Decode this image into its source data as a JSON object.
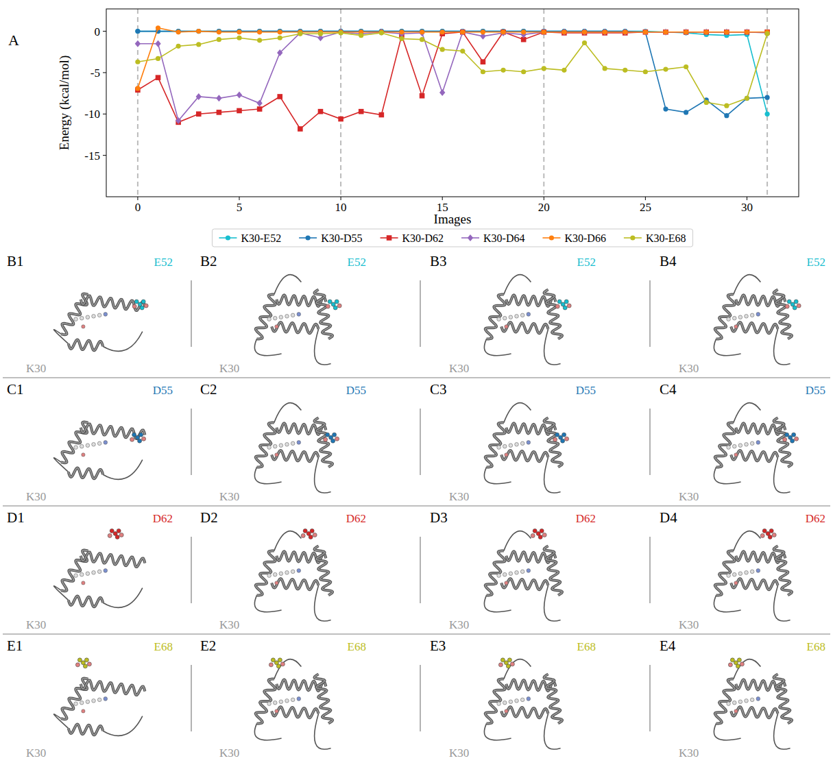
{
  "chart_data": {
    "type": "line",
    "panel_label": "A",
    "x_label": "Images",
    "y_label": "Energy (kcal/mol)",
    "x": [
      0,
      1,
      2,
      3,
      4,
      5,
      6,
      7,
      8,
      9,
      10,
      11,
      12,
      13,
      14,
      15,
      16,
      17,
      18,
      19,
      20,
      21,
      22,
      23,
      24,
      25,
      26,
      27,
      28,
      29,
      30,
      31
    ],
    "xlim": [
      -1.55,
      32.55
    ],
    "xticks": [
      0,
      5,
      10,
      15,
      20,
      25,
      30
    ],
    "ylim": [
      -20,
      2.7
    ],
    "yticks": [
      -15,
      -10,
      -5,
      0
    ],
    "vlines": [
      0,
      10,
      20,
      31
    ],
    "grid": false,
    "legend": "below",
    "series": [
      {
        "name": "K30-E52",
        "color": "#17becf",
        "marker": "circle",
        "line_style": "solid",
        "values": [
          0,
          0,
          0,
          0,
          0,
          0,
          0,
          0,
          0,
          0,
          0,
          0,
          0,
          0,
          0,
          0,
          0,
          0,
          0,
          0,
          0,
          0,
          0,
          0,
          0,
          0,
          -0.1,
          -0.2,
          -0.4,
          -0.5,
          -0.4,
          -10.0
        ]
      },
      {
        "name": "K30-D55",
        "color": "#1f77b4",
        "marker": "circle",
        "line_style": "solid",
        "values": [
          0,
          0,
          0,
          0,
          0,
          0,
          0,
          0,
          0,
          0,
          0,
          0,
          0,
          0,
          0,
          0,
          0,
          0,
          0,
          0,
          0,
          0,
          0,
          0,
          0,
          -0.1,
          -9.4,
          -9.8,
          -8.3,
          -10.2,
          -8.1,
          -8.0
        ]
      },
      {
        "name": "K30-D62",
        "color": "#d62728",
        "marker": "square",
        "line_style": "solid",
        "values": [
          -7.1,
          -5.6,
          -11.0,
          -10.0,
          -9.8,
          -9.6,
          -9.4,
          -7.9,
          -11.8,
          -9.7,
          -10.6,
          -9.7,
          -10.1,
          -0.5,
          -7.8,
          -0.3,
          -0.1,
          -3.7,
          -0.1,
          -1.0,
          -0.1,
          -0.2,
          -0.2,
          -0.2,
          -0.2,
          -0.1,
          -0.1,
          -0.1,
          -0.1,
          -0.1,
          -0.1,
          -0.1
        ]
      },
      {
        "name": "K30-D64",
        "color": "#9467bd",
        "marker": "diamond",
        "line_style": "solid",
        "values": [
          -1.5,
          -1.5,
          -10.8,
          -7.9,
          -8.1,
          -7.7,
          -8.7,
          -2.6,
          -0.2,
          -0.8,
          -0.1,
          -0.3,
          -0.1,
          -0.3,
          -0.2,
          -7.4,
          -0.1,
          -0.6,
          -0.2,
          -0.4,
          -0.1,
          -0.1,
          -0.1,
          -0.1,
          -0.1,
          -0.1,
          -0.1,
          -0.1,
          -0.1,
          -0.1,
          -0.1,
          -0.2
        ]
      },
      {
        "name": "K30-D66",
        "color": "#ff7f0e",
        "marker": "circle",
        "line_style": "solid",
        "values": [
          -6.9,
          0.4,
          -0.1,
          0,
          -0.1,
          -0.1,
          -0.1,
          -0.1,
          -0.1,
          -0.1,
          -0.1,
          -0.1,
          -0.1,
          -0.1,
          -0.1,
          -0.1,
          -0.1,
          -0.1,
          -0.1,
          -0.1,
          -0.1,
          -0.1,
          -0.1,
          -0.1,
          -0.1,
          -0.1,
          -0.1,
          -0.1,
          -0.1,
          -0.1,
          -0.1,
          -0.1
        ]
      },
      {
        "name": "K30-E68",
        "color": "#bcbd22",
        "marker": "circle",
        "line_style": "solid",
        "values": [
          -3.7,
          -3.3,
          -1.8,
          -1.6,
          -1.0,
          -0.8,
          -1.1,
          -0.8,
          -0.3,
          -0.3,
          -0.2,
          -0.5,
          -0.2,
          -0.9,
          -1.0,
          -2.2,
          -2.4,
          -4.9,
          -4.7,
          -4.9,
          -4.5,
          -4.7,
          -1.4,
          -4.5,
          -4.7,
          -4.9,
          -4.6,
          -4.3,
          -8.6,
          -9.0,
          -8.1,
          -0.3
        ]
      }
    ]
  },
  "structure_panels": {
    "anchor_label": "K30",
    "rows": [
      {
        "residue": "E52",
        "color": "#17becf",
        "panels": [
          "B1",
          "B2",
          "B3",
          "B4"
        ]
      },
      {
        "residue": "D55",
        "color": "#1f77b4",
        "panels": [
          "C1",
          "C2",
          "C3",
          "C4"
        ]
      },
      {
        "residue": "D62",
        "color": "#d62728",
        "panels": [
          "D1",
          "D2",
          "D3",
          "D4"
        ]
      },
      {
        "residue": "E68",
        "color": "#bcbd22",
        "panels": [
          "E1",
          "E2",
          "E3",
          "E4"
        ]
      }
    ]
  }
}
